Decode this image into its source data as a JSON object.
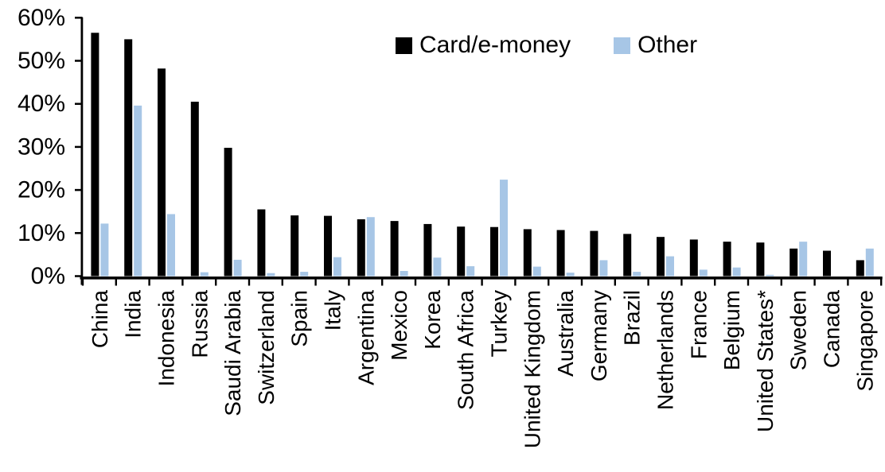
{
  "chart_data": {
    "type": "bar",
    "title": "",
    "categories": [
      "China",
      "India",
      "Indonesia",
      "Russia",
      "Saudi Arabia",
      "Switzerland",
      "Spain",
      "Italy",
      "Argentina",
      "Mexico",
      "Korea",
      "South Africa",
      "Turkey",
      "United Kingdom",
      "Australia",
      "Germany",
      "Brazil",
      "Netherlands",
      "France",
      "Belgium",
      "United States*",
      "Sweden",
      "Canada",
      "Singapore"
    ],
    "series": [
      {
        "name": "Card/e-money",
        "color": "#000000",
        "values": [
          56.5,
          55.0,
          48.2,
          40.5,
          29.8,
          15.5,
          14.1,
          14.0,
          13.2,
          12.8,
          12.1,
          11.5,
          11.4,
          10.9,
          10.7,
          10.5,
          9.8,
          9.1,
          8.5,
          8.0,
          7.8,
          6.4,
          5.9,
          3.7
        ]
      },
      {
        "name": "Other",
        "color": "#A7C6E6",
        "values": [
          12.2,
          39.6,
          14.4,
          0.9,
          3.8,
          0.7,
          1.0,
          4.4,
          13.7,
          1.2,
          4.3,
          2.3,
          22.4,
          2.2,
          0.8,
          3.7,
          1.0,
          4.6,
          1.5,
          2.0,
          0.3,
          8.0,
          0,
          6.4
        ]
      }
    ],
    "xlabel": "",
    "ylabel": "",
    "y_axis": {
      "min": 0,
      "max": 60,
      "step": 10,
      "unit": "%",
      "tick_labels": [
        "0%",
        "10%",
        "20%",
        "30%",
        "40%",
        "50%",
        "60%"
      ]
    },
    "x_axis": {
      "label_rotation": -90
    },
    "legend_position": "top-center",
    "grid": false,
    "axis_color": "#000000"
  }
}
